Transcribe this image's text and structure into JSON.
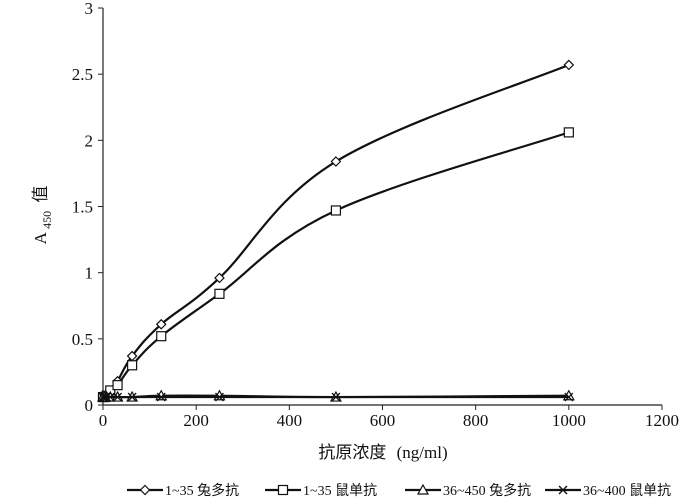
{
  "chart_data": {
    "type": "line",
    "title": "",
    "xlabel_main": "抗原浓度",
    "xlabel_unit": "(ng/ml)",
    "ylabel_base": "A",
    "ylabel_sub": "450",
    "ylabel_suffix": "值",
    "xlim": [
      0,
      1200
    ],
    "ylim": [
      0,
      3
    ],
    "xticks": [
      0,
      200,
      400,
      600,
      800,
      1000,
      1200
    ],
    "yticks": [
      0,
      0.5,
      1,
      1.5,
      2,
      2.5,
      3
    ],
    "xtick_labels": [
      "0",
      "200",
      "400",
      "600",
      "800",
      "1000",
      "1200"
    ],
    "ytick_labels": [
      "0",
      "0.5",
      "1",
      "1.5",
      "2",
      "2.5",
      "3"
    ],
    "grid": false,
    "legend_position": "bottom",
    "x": [
      0,
      3.9,
      7.8,
      15.6,
      31.25,
      62.5,
      125,
      250,
      500,
      1000
    ],
    "series": [
      {
        "name": "1~35 兔多抗",
        "marker": "diamond",
        "values": [
          0.06,
          0.06,
          0.07,
          0.1,
          0.18,
          0.37,
          0.61,
          0.96,
          1.84,
          2.57
        ]
      },
      {
        "name": "1~35 鼠单抗",
        "marker": "square",
        "values": [
          0.06,
          0.06,
          0.07,
          0.11,
          0.15,
          0.3,
          0.52,
          0.84,
          1.47,
          2.06
        ]
      },
      {
        "name": "36~450 兔多抗",
        "marker": "triangle",
        "values": [
          0.06,
          0.06,
          0.06,
          0.06,
          0.06,
          0.06,
          0.07,
          0.07,
          0.06,
          0.07
        ]
      },
      {
        "name": "36~400 鼠单抗",
        "marker": "x",
        "values": [
          0.06,
          0.06,
          0.06,
          0.06,
          0.06,
          0.06,
          0.06,
          0.06,
          0.06,
          0.06
        ]
      }
    ]
  }
}
